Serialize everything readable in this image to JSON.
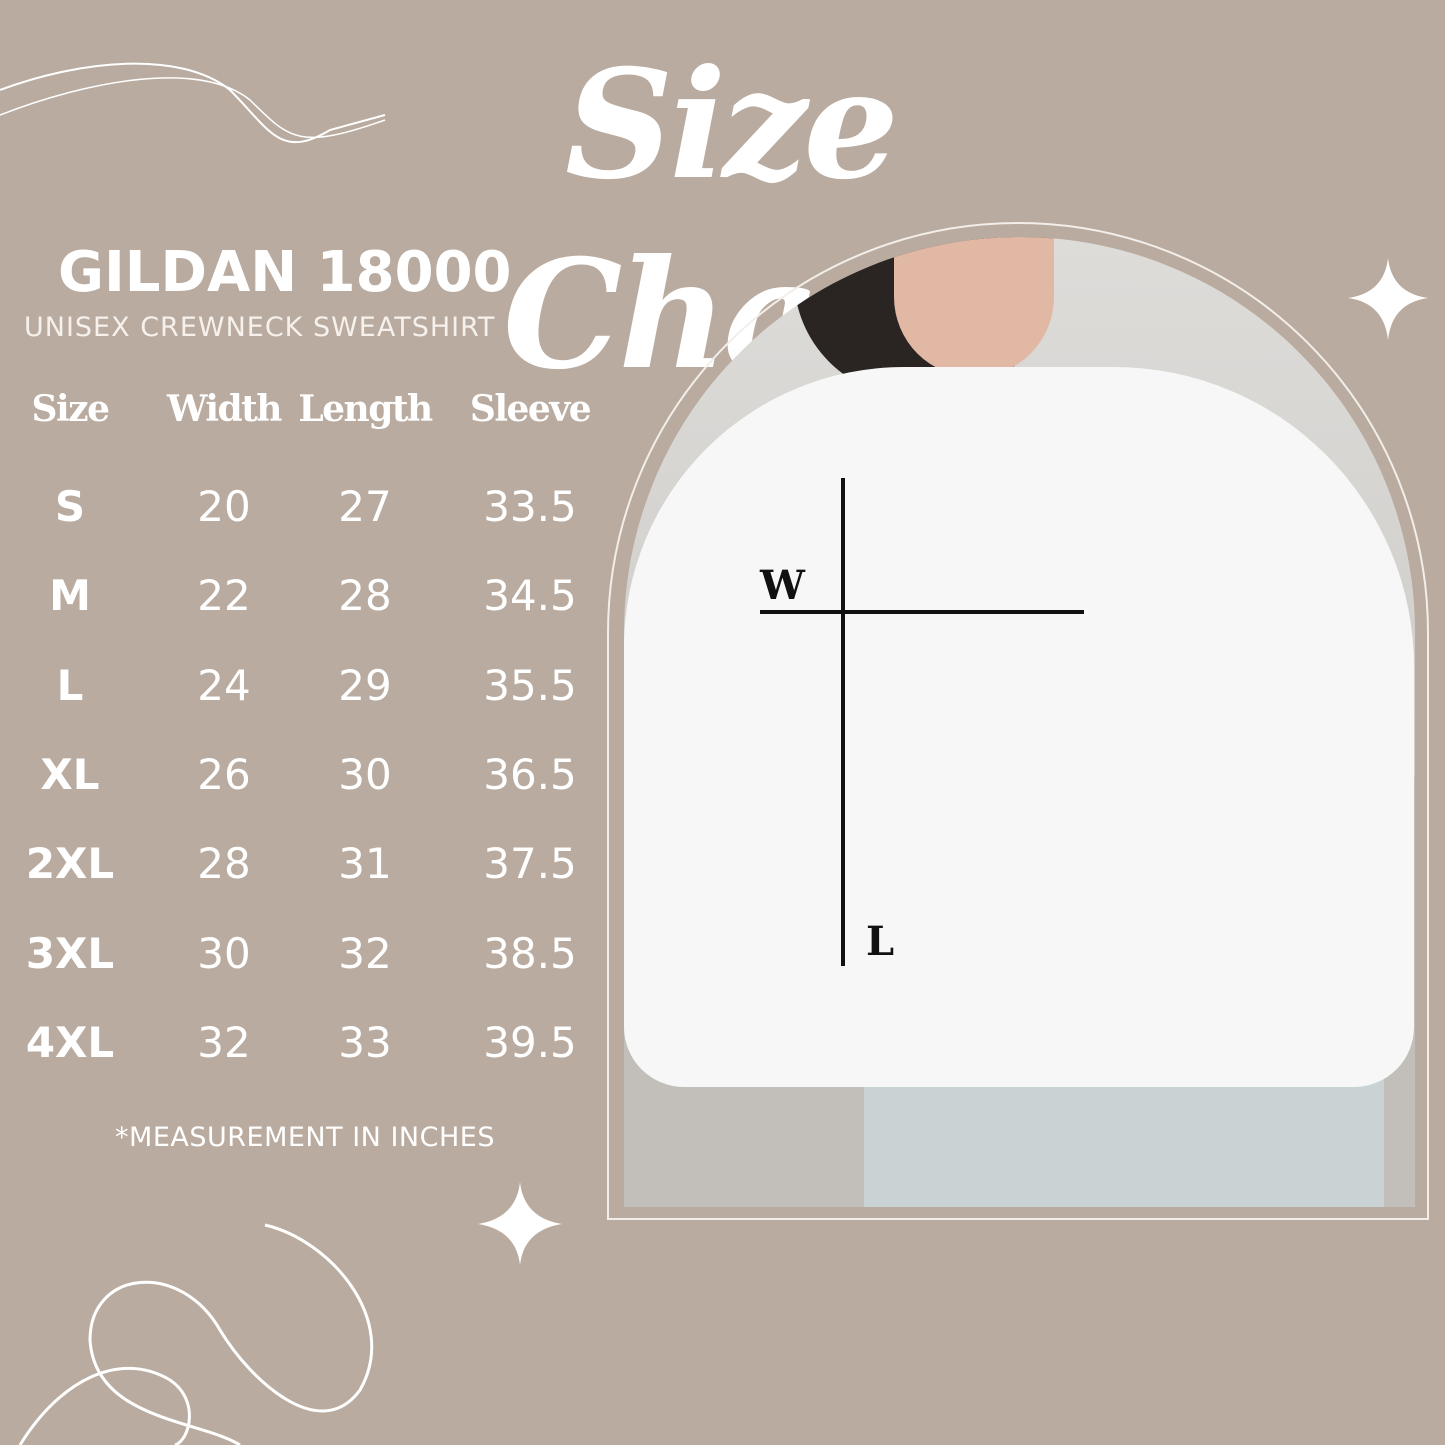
{
  "title": "Size Chart",
  "brand": "GILDAN 18000",
  "subtitle": "UNISEX CREWNECK SWEATSHIRT",
  "table": {
    "headers": [
      "Size",
      "Width",
      "Length",
      "Sleeve"
    ],
    "rows": [
      [
        "S",
        "20",
        "27",
        "33.5"
      ],
      [
        "M",
        "22",
        "28",
        "34.5"
      ],
      [
        "L",
        "24",
        "29",
        "35.5"
      ],
      [
        "XL",
        "26",
        "30",
        "36.5"
      ],
      [
        "2XL",
        "28",
        "31",
        "37.5"
      ],
      [
        "3XL",
        "30",
        "32",
        "38.5"
      ],
      [
        "4XL",
        "32",
        "33",
        "39.5"
      ]
    ]
  },
  "note": "*MEASUREMENT IN INCHES",
  "measure_labels": {
    "width": "W",
    "length": "L"
  },
  "colors": {
    "background": "#b9ab9f",
    "text": "#ffffff",
    "measure_lines": "#111111"
  }
}
